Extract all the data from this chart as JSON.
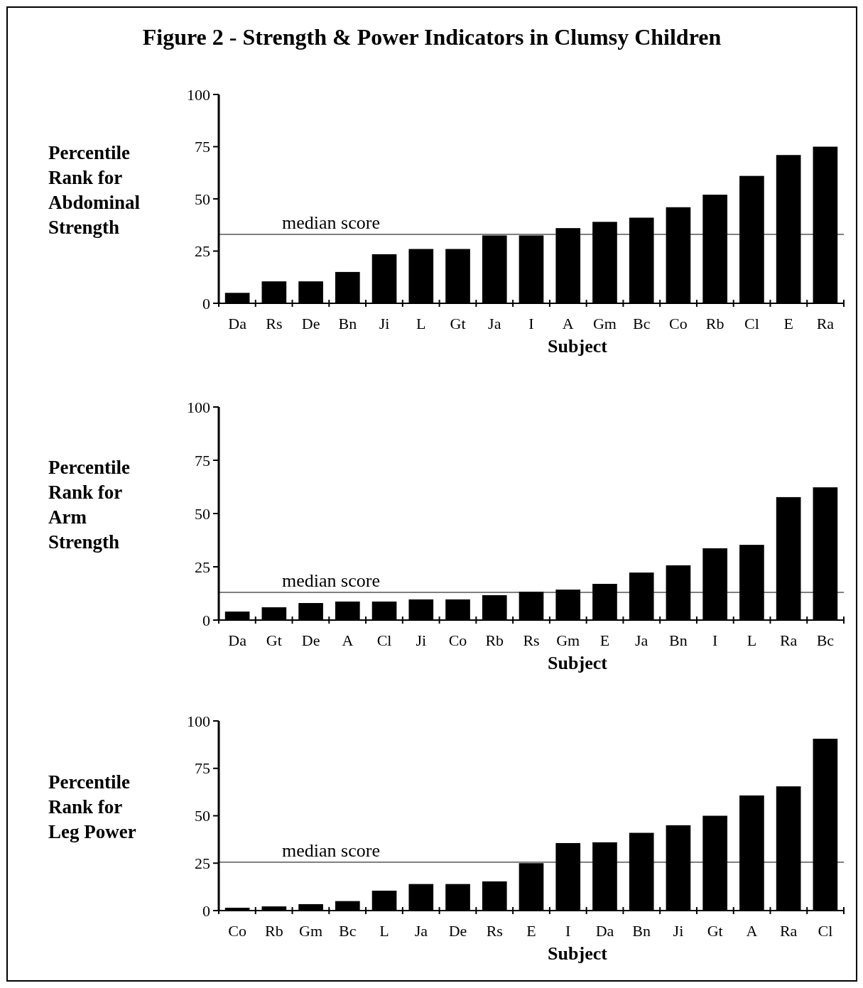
{
  "chart_data": [
    {
      "type": "bar",
      "title": "Figure 2 - Strength & Power Indicators in Clumsy Children",
      "ylabel": "Percentile Rank for Abdominal Strength",
      "xlabel": "Subject",
      "categories": [
        "Da",
        "Rs",
        "De",
        "Bn",
        "Ji",
        "L",
        "Gt",
        "Ja",
        "I",
        "A",
        "Gm",
        "Bc",
        "Co",
        "Rb",
        "Cl",
        "E",
        "Ra"
      ],
      "values": [
        5,
        10.5,
        10.5,
        15,
        23.5,
        26,
        26,
        32.5,
        32.5,
        36,
        39,
        41,
        46,
        52,
        61,
        71,
        75
      ],
      "color": "#000000",
      "ylim": [
        0,
        100
      ],
      "yticks": [
        0,
        25,
        50,
        75,
        100
      ],
      "ref_lines": [
        {
          "axis": "y",
          "value": 33,
          "label": "median score"
        }
      ]
    },
    {
      "type": "bar",
      "ylabel": "Percentile Rank for Arm Strength",
      "xlabel": "Subject",
      "categories": [
        "Da",
        "Gt",
        "De",
        "A",
        "Cl",
        "Ji",
        "Co",
        "Rb",
        "Rs",
        "Gm",
        "E",
        "Ja",
        "Bn",
        "I",
        "L",
        "Ra",
        "Bc"
      ],
      "values": [
        4,
        6,
        8,
        8.7,
        8.7,
        9.7,
        9.7,
        11.7,
        13.3,
        14.3,
        17,
        22.3,
        25.7,
        33.7,
        35.3,
        57.7,
        62.3
      ],
      "color": "#000000",
      "ylim": [
        0,
        100
      ],
      "yticks": [
        0,
        25,
        50,
        75,
        100
      ],
      "ref_lines": [
        {
          "axis": "y",
          "value": 13,
          "label": "median score"
        }
      ]
    },
    {
      "type": "bar",
      "ylabel": "Percentile Rank for Leg Power",
      "xlabel": "Subject",
      "categories": [
        "Co",
        "Rb",
        "Gm",
        "Bc",
        "L",
        "Ja",
        "De",
        "Rs",
        "E",
        "I",
        "Da",
        "Bn",
        "Ji",
        "Gt",
        "A",
        "Ra",
        "Cl"
      ],
      "values": [
        1.5,
        2.2,
        3.4,
        5,
        10.5,
        14,
        14,
        15.4,
        25,
        35.6,
        36,
        41,
        45,
        50,
        60.7,
        65.5,
        90.6
      ],
      "color": "#000000",
      "ylim": [
        0,
        100
      ],
      "yticks": [
        0,
        25,
        50,
        75,
        100
      ],
      "ref_lines": [
        {
          "axis": "y",
          "value": 25.5,
          "label": "median score"
        }
      ]
    }
  ]
}
